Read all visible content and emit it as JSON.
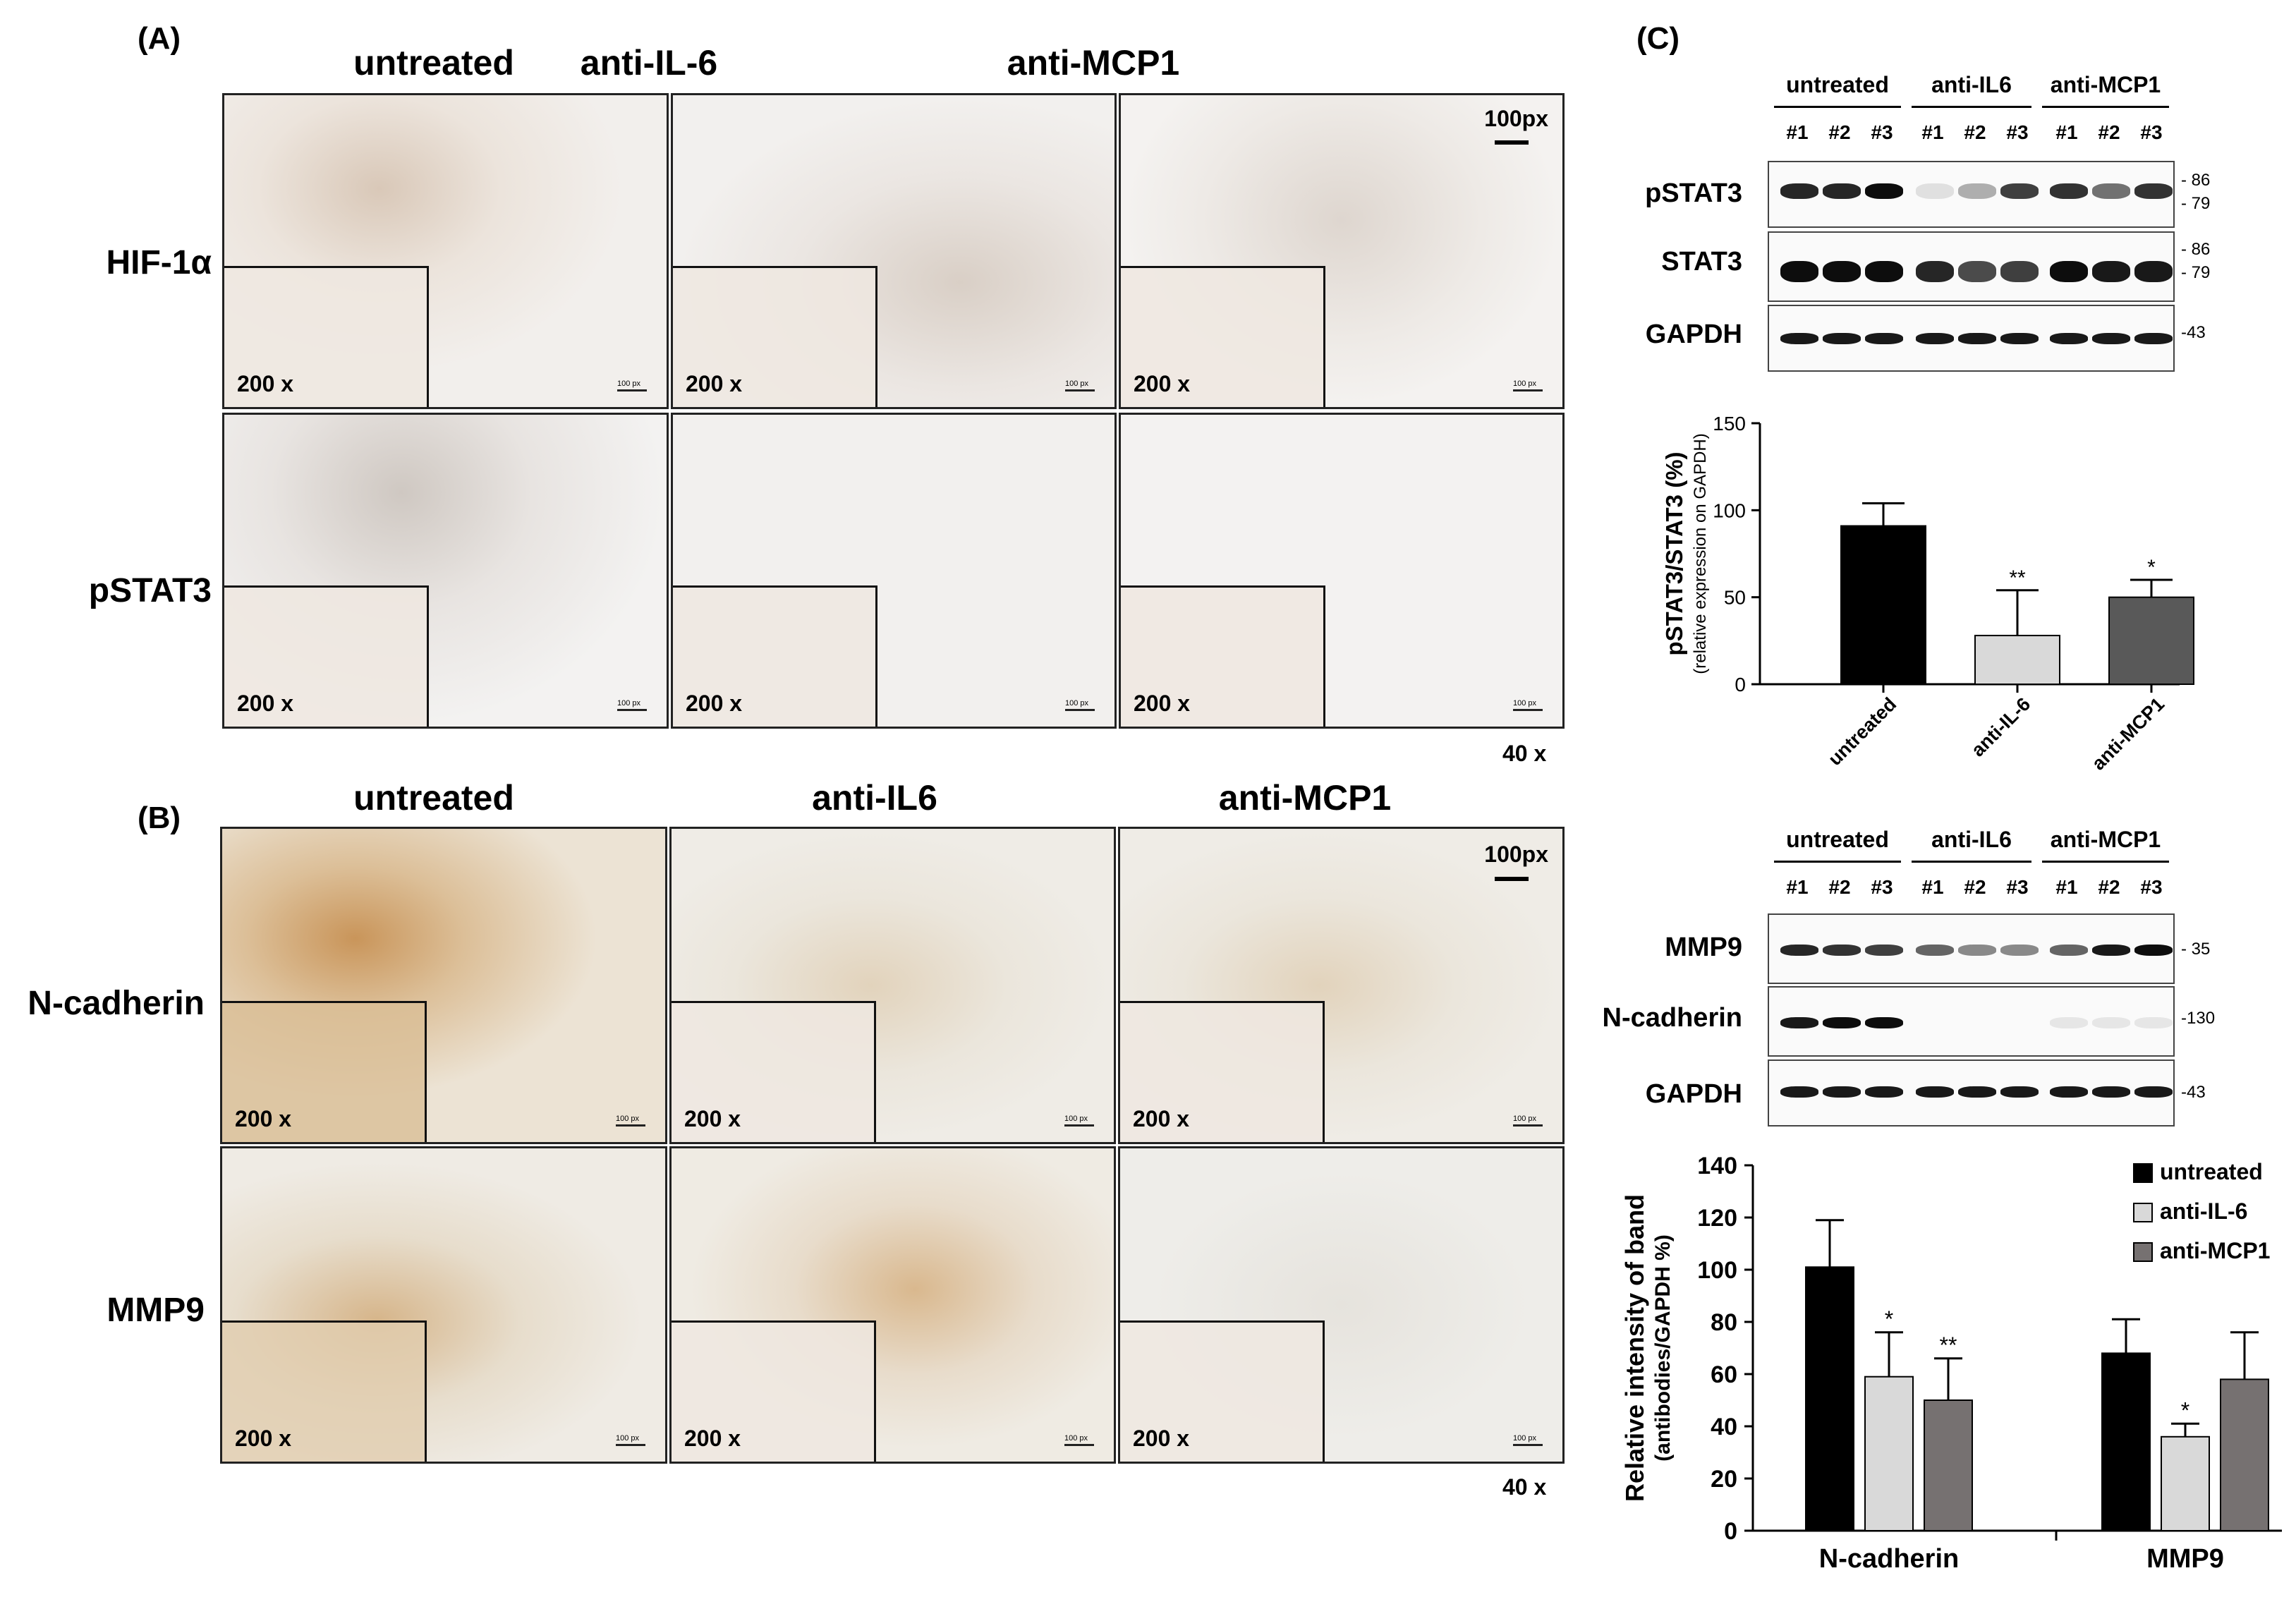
{
  "panelA": {
    "label": "(A)",
    "columns": [
      "untreated",
      "anti-IL-6",
      "anti-MCP1"
    ],
    "rows": [
      "HIF-1α",
      "pSTAT3"
    ],
    "scale_bar": "100px",
    "inset_mag": "200 x",
    "micro_scale": "100 px",
    "overall_mag": "40 x"
  },
  "panelB": {
    "label": "(B)",
    "columns": [
      "untreated",
      "anti-IL6",
      "anti-MCP1"
    ],
    "rows": [
      "N-cadherin",
      "MMP9"
    ],
    "scale_bar": "100px",
    "inset_mag": "200 x",
    "micro_scale": "100 px",
    "overall_mag": "40 x"
  },
  "panelC": {
    "label": "(C)",
    "blot1": {
      "groups": [
        "untreated",
        "anti-IL6",
        "anti-MCP1"
      ],
      "lanes": [
        "#1",
        "#2",
        "#3",
        "#1",
        "#2",
        "#3",
        "#1",
        "#2",
        "#3"
      ],
      "rows": [
        {
          "name": "pSTAT3",
          "mw": [
            "- 86",
            "- 79"
          ]
        },
        {
          "name": "STAT3",
          "mw": [
            "- 86",
            "- 79"
          ]
        },
        {
          "name": "GAPDH",
          "mw": [
            "-43"
          ]
        }
      ]
    },
    "blot2": {
      "groups": [
        "untreated",
        "anti-IL6",
        "anti-MCP1"
      ],
      "lanes": [
        "#1",
        "#2",
        "#3",
        "#1",
        "#2",
        "#3",
        "#1",
        "#2",
        "#3"
      ],
      "rows": [
        {
          "name": "MMP9",
          "mw": [
            "- 35"
          ]
        },
        {
          "name": "N-cadherin",
          "mw": [
            "-130"
          ]
        },
        {
          "name": "GAPDH",
          "mw": [
            "-43"
          ]
        }
      ]
    }
  },
  "chart_data": [
    {
      "type": "bar",
      "ylabel": "pSTAT3/STAT3 (%)",
      "ylabel2": "(relative expression on GAPDH)",
      "categories": [
        "untreated",
        "anti-IL-6",
        "anti-MCP1"
      ],
      "values": [
        91,
        28,
        50
      ],
      "errors": [
        13,
        26,
        10
      ],
      "significance": [
        "",
        "**",
        "*"
      ],
      "colors": [
        "#000000",
        "#d9d9d9",
        "#595959"
      ],
      "ylim": [
        0,
        150
      ],
      "yticks": [
        0,
        50,
        100,
        150
      ]
    },
    {
      "type": "bar",
      "ylabel": "Relative intensity of band",
      "ylabel2": "(antibodies/GAPDH %)",
      "categories": [
        "N-cadherin",
        "MMP9"
      ],
      "series": [
        {
          "name": "untreated",
          "values": [
            101,
            68
          ],
          "errors": [
            18,
            13
          ],
          "significance": [
            "",
            ""
          ],
          "color": "#000000"
        },
        {
          "name": "anti-IL-6",
          "values": [
            59,
            36
          ],
          "errors": [
            17,
            5
          ],
          "significance": [
            "*",
            "*"
          ],
          "color": "#d9d9d9"
        },
        {
          "name": "anti-MCP1",
          "values": [
            50,
            58
          ],
          "errors": [
            16,
            18
          ],
          "significance": [
            "**",
            ""
          ],
          "color": "#767171"
        }
      ],
      "ylim": [
        0,
        140
      ],
      "yticks": [
        0,
        20,
        40,
        60,
        80,
        100,
        120,
        140
      ],
      "legend": "top-right"
    }
  ]
}
